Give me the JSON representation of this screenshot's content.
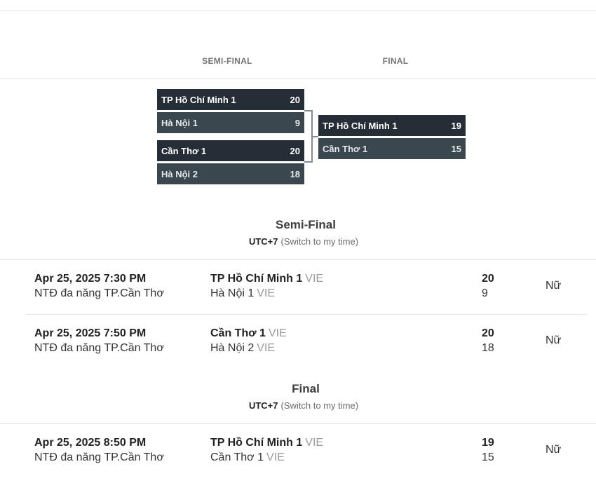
{
  "rounds": {
    "semi_label": "SEMI-FINAL",
    "final_label": "FINAL"
  },
  "bracket": {
    "semi1": {
      "team1": "TP Hồ Chí Minh 1",
      "score1": "20",
      "team2": "Hà Nội 1",
      "score2": "9"
    },
    "semi2": {
      "team1": "Cần Thơ 1",
      "score1": "20",
      "team2": "Hà Nội 2",
      "score2": "18"
    },
    "final": {
      "team1": "TP Hồ Chí Minh 1",
      "score1": "19",
      "team2": "Cần Thơ 1",
      "score2": "15"
    }
  },
  "sections": [
    {
      "title": "Semi-Final",
      "tz": "UTC+7",
      "switch": "(Switch to my time)",
      "matches": [
        {
          "date": "Apr 25, 2025 7:30 PM",
          "venue": "NTĐ đa năng TP.Cần Thơ",
          "team1": "TP Hồ Chí Minh 1",
          "team1_country": "VIE",
          "team2": "Hà Nội 1",
          "team2_country": "VIE",
          "score1": "20",
          "score2": "9",
          "gender": "Nữ"
        },
        {
          "date": "Apr 25, 2025 7:50 PM",
          "venue": "NTĐ đa năng TP.Cần Thơ",
          "team1": "Cần Thơ 1",
          "team1_country": "VIE",
          "team2": "Hà Nội 2",
          "team2_country": "VIE",
          "score1": "20",
          "score2": "18",
          "gender": "Nữ"
        }
      ]
    },
    {
      "title": "Final",
      "tz": "UTC+7",
      "switch": "(Switch to my time)",
      "matches": [
        {
          "date": "Apr 25, 2025 8:50 PM",
          "venue": "NTĐ đa năng TP.Cần Thơ",
          "team1": "TP Hồ Chí Minh 1",
          "team1_country": "VIE",
          "team2": "Cần Thơ 1",
          "team2_country": "VIE",
          "score1": "19",
          "score2": "15",
          "gender": "Nữ"
        }
      ]
    }
  ],
  "colors": {
    "winner_bg": "#252e36",
    "loser_bg": "#3a474f",
    "connector": "#7f8c95"
  }
}
